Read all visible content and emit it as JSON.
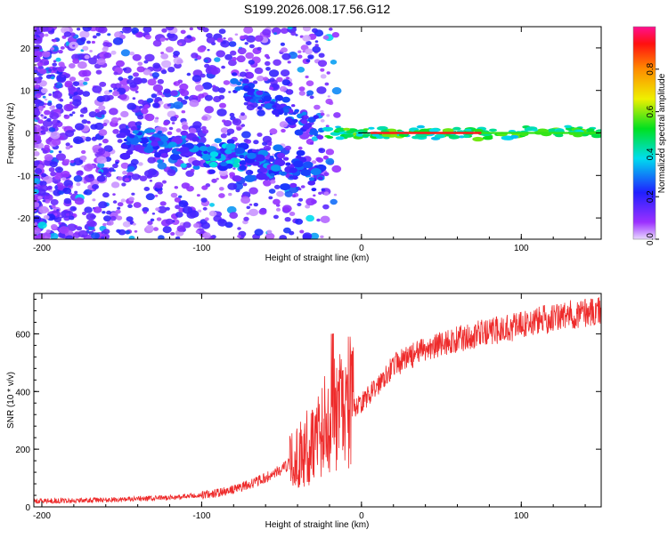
{
  "title": "S199.2026.008.17.56.G12",
  "colors": {
    "snr_line": "#ee2b2b",
    "ridge": "#ff1a1a",
    "frame": "#000000"
  },
  "chart_data": [
    {
      "type": "heatmap",
      "name": "spectrogram",
      "xlabel": "Height of straight line (km)",
      "ylabel": "Frequency (Hz)",
      "xlim": [
        -205,
        150
      ],
      "ylim": [
        -25,
        25
      ],
      "xticks": [
        -200,
        -100,
        0,
        100
      ],
      "yticks": [
        -20,
        -10,
        0,
        10,
        20
      ],
      "colorbar": {
        "label": "Normalized spectral amplitude",
        "range": [
          0,
          1
        ],
        "ticks": [
          "0.0",
          "0.2",
          "0.4",
          "0.6",
          "0.8"
        ],
        "tick_values": [
          0.0,
          0.2,
          0.4,
          0.6,
          0.8
        ]
      },
      "features": [
        {
          "name": "carrier ridge",
          "frequency_hz": 0,
          "x_range_km": [
            -2,
            150
          ],
          "amplitude": 0.95
        },
        {
          "name": "scattered noise blobs",
          "x_range_km": [
            -205,
            -20
          ],
          "frequency_range_hz": [
            -25,
            25
          ],
          "amplitude": 0.45
        }
      ]
    },
    {
      "type": "line",
      "name": "snr",
      "xlabel": "Height of straight line (km)",
      "ylabel": "SNR (10 * v/v)",
      "xlim": [
        -205,
        150
      ],
      "ylim": [
        0,
        740
      ],
      "xticks": [
        -200,
        -100,
        0,
        100
      ],
      "yticks": [
        0,
        200,
        400,
        600
      ],
      "series": [
        {
          "name": "SNR",
          "x": [
            -205,
            -180,
            -160,
            -140,
            -120,
            -100,
            -90,
            -80,
            -70,
            -60,
            -50,
            -40,
            -30,
            -25,
            -20,
            -15,
            -10,
            -5,
            0,
            5,
            10,
            15,
            20,
            30,
            40,
            50,
            60,
            70,
            80,
            90,
            100,
            110,
            120,
            130,
            140,
            150
          ],
          "y": [
            20,
            22,
            24,
            27,
            32,
            40,
            48,
            60,
            78,
            100,
            130,
            170,
            230,
            270,
            300,
            320,
            330,
            340,
            360,
            390,
            420,
            460,
            490,
            520,
            545,
            565,
            580,
            595,
            605,
            620,
            630,
            645,
            655,
            665,
            675,
            680
          ]
        }
      ]
    }
  ]
}
